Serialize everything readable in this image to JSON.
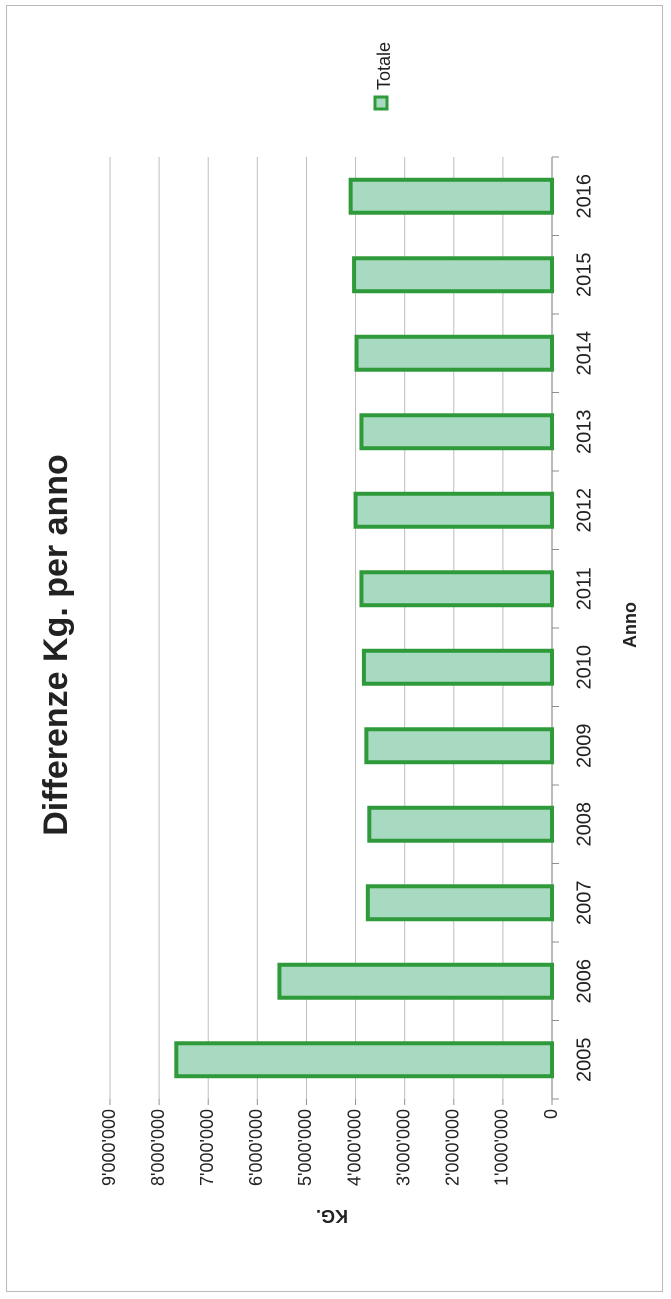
{
  "chart_data": {
    "type": "bar",
    "orientation": "rotated-90-clockwise",
    "title": "Differenze Kg. per anno",
    "xlabel": "Anno",
    "ylabel": "KG.",
    "categories": [
      "2005",
      "2006",
      "2007",
      "2008",
      "2009",
      "2010",
      "2011",
      "2012",
      "2013",
      "2014",
      "2015",
      "2016"
    ],
    "series": [
      {
        "name": "Totale",
        "values": [
          7650000,
          5550000,
          3750000,
          3720000,
          3780000,
          3830000,
          3880000,
          4000000,
          3880000,
          3980000,
          4030000,
          4100000
        ]
      }
    ],
    "ylim": [
      0,
      9000000
    ],
    "yticks": [
      "0",
      "1'000'000",
      "2'000'000",
      "3'000'000",
      "4'000'000",
      "5'000'000",
      "6'000'000",
      "7'000'000",
      "8'000'000",
      "9'000'000"
    ],
    "grid": true,
    "legend": "top-right",
    "colors": {
      "bar_fill": "#a8d9c1",
      "bar_stroke": "#2e9a3a",
      "grid": "#bdbdbd",
      "axis": "#8f8f8f"
    }
  }
}
